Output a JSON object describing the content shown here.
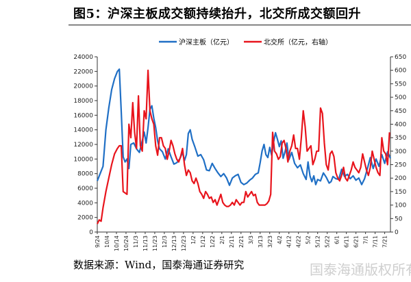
{
  "title": "图5：沪深主板成交额持续抬升，北交所成交额回升",
  "source": "数据来源：Wind，国泰海通证券研究",
  "watermark": "国泰海通版权所有",
  "chart_data": {
    "type": "line",
    "title": "沪深主板成交额持续抬升，北交所成交额回升",
    "x_tick_labels": [
      "9/24",
      "10/4",
      "10/14",
      "10/24",
      "11/3",
      "11/13",
      "11/23",
      "12/3",
      "12/13",
      "12/23",
      "1/2",
      "1/12",
      "1/22",
      "2/1",
      "2/11",
      "2/21",
      "3/3",
      "3/13",
      "3/23",
      "4/2",
      "4/12",
      "4/22",
      "5/2",
      "5/12",
      "5/22",
      "6/1",
      "6/11",
      "6/21",
      "7/1",
      "7/11",
      "7/21"
    ],
    "y_left": {
      "min": 0,
      "max": 24000,
      "step": 2000,
      "label": "沪深主板（亿元）"
    },
    "y_right": {
      "min": 0,
      "max": 650,
      "step": 50,
      "label": "北交所（亿元，右轴）"
    },
    "legend_position": "top",
    "colors": {
      "mainboard": "#1f6fc5",
      "bse": "#e8141c"
    },
    "series": [
      {
        "name": "沪深主板（亿元）",
        "axis": "left",
        "points": [
          [
            0,
            7000
          ],
          [
            0.3,
            8000
          ],
          [
            0.6,
            9000
          ],
          [
            0.9,
            14000
          ],
          [
            1.2,
            17000
          ],
          [
            1.5,
            19500
          ],
          [
            1.8,
            21000
          ],
          [
            2.1,
            22000
          ],
          [
            2.3,
            22300
          ],
          [
            2.5,
            16500
          ],
          [
            2.7,
            10300
          ],
          [
            2.9,
            9600
          ],
          [
            3.1,
            10000
          ],
          [
            3.3,
            8700
          ],
          [
            3.5,
            12000
          ],
          [
            3.8,
            12200
          ],
          [
            4.1,
            11400
          ],
          [
            4.4,
            10900
          ],
          [
            4.7,
            12500
          ],
          [
            4.9,
            13700
          ],
          [
            5.1,
            12200
          ],
          [
            5.3,
            14300
          ],
          [
            5.5,
            16800
          ],
          [
            5.7,
            17300
          ],
          [
            5.9,
            15600
          ],
          [
            6.1,
            14300
          ],
          [
            6.3,
            12500
          ],
          [
            6.5,
            11400
          ],
          [
            6.8,
            11000
          ],
          [
            7.1,
            10000
          ],
          [
            7.4,
            11400
          ],
          [
            7.7,
            10300
          ],
          [
            8.0,
            9300
          ],
          [
            8.3,
            9500
          ],
          [
            8.6,
            10000
          ],
          [
            8.9,
            10900
          ],
          [
            9.1,
            9800
          ],
          [
            9.3,
            10600
          ],
          [
            9.5,
            13500
          ],
          [
            9.7,
            14000
          ],
          [
            9.9,
            12700
          ],
          [
            10.2,
            11600
          ],
          [
            10.5,
            10400
          ],
          [
            10.8,
            10600
          ],
          [
            11.1,
            9900
          ],
          [
            11.4,
            8500
          ],
          [
            11.7,
            8400
          ],
          [
            12.0,
            9400
          ],
          [
            12.3,
            8700
          ],
          [
            12.6,
            8100
          ],
          [
            12.9,
            7600
          ],
          [
            13.2,
            8000
          ],
          [
            13.5,
            7400
          ],
          [
            13.8,
            6400
          ],
          [
            14.1,
            7400
          ],
          [
            14.4,
            7700
          ],
          [
            14.7,
            7900
          ],
          [
            15.0,
            6800
          ],
          [
            15.3,
            6500
          ],
          [
            15.6,
            6700
          ],
          [
            15.9,
            7100
          ],
          [
            16.2,
            7400
          ],
          [
            16.5,
            7900
          ],
          [
            16.8,
            8100
          ],
          [
            17.0,
            9500
          ],
          [
            17.2,
            11100
          ],
          [
            17.4,
            12000
          ],
          [
            17.6,
            10600
          ],
          [
            17.8,
            10200
          ],
          [
            18.0,
            11600
          ],
          [
            18.2,
            10500
          ],
          [
            18.4,
            12300
          ],
          [
            18.6,
            13600
          ],
          [
            18.8,
            12700
          ],
          [
            19.0,
            11700
          ],
          [
            19.2,
            12500
          ],
          [
            19.4,
            10100
          ],
          [
            19.6,
            11000
          ],
          [
            19.8,
            12200
          ],
          [
            20.0,
            9900
          ],
          [
            20.3,
            10900
          ],
          [
            20.6,
            9400
          ],
          [
            20.9,
            8800
          ],
          [
            21.2,
            9200
          ],
          [
            21.5,
            8000
          ],
          [
            21.8,
            7200
          ],
          [
            22.0,
            9600
          ],
          [
            22.2,
            7700
          ],
          [
            22.4,
            6900
          ],
          [
            22.6,
            7700
          ],
          [
            22.8,
            6500
          ],
          [
            23.0,
            7200
          ],
          [
            23.3,
            7000
          ],
          [
            23.6,
            8100
          ],
          [
            23.9,
            7500
          ],
          [
            24.2,
            6700
          ],
          [
            24.4,
            6900
          ],
          [
            24.6,
            7600
          ],
          [
            24.9,
            7300
          ],
          [
            25.2,
            7200
          ],
          [
            25.5,
            8600
          ],
          [
            25.8,
            7600
          ],
          [
            26.1,
            7900
          ],
          [
            26.4,
            7300
          ],
          [
            26.7,
            7700
          ],
          [
            27.0,
            7100
          ],
          [
            27.3,
            7400
          ],
          [
            27.6,
            6500
          ],
          [
            27.9,
            7300
          ],
          [
            28.2,
            8700
          ],
          [
            28.5,
            10200
          ],
          [
            28.8,
            8700
          ],
          [
            29.1,
            10000
          ],
          [
            29.4,
            9000
          ],
          [
            29.7,
            10600
          ],
          [
            30.0,
            9400
          ],
          [
            30.3,
            11000
          ],
          [
            30.6,
            10100
          ]
        ]
      },
      {
        "name": "北交所（亿元，右轴）",
        "axis": "right",
        "points": [
          [
            0,
            30
          ],
          [
            0.2,
            45
          ],
          [
            0.4,
            40
          ],
          [
            0.6,
            90
          ],
          [
            0.9,
            150
          ],
          [
            1.2,
            200
          ],
          [
            1.5,
            250
          ],
          [
            1.8,
            290
          ],
          [
            2.1,
            310
          ],
          [
            2.3,
            320
          ],
          [
            2.5,
            320
          ],
          [
            2.7,
            150
          ],
          [
            2.9,
            145
          ],
          [
            3.1,
            140
          ],
          [
            3.3,
            400
          ],
          [
            3.5,
            350
          ],
          [
            3.7,
            480
          ],
          [
            3.9,
            370
          ],
          [
            4.1,
            310
          ],
          [
            4.3,
            505
          ],
          [
            4.5,
            320
          ],
          [
            4.7,
            300
          ],
          [
            4.9,
            450
          ],
          [
            5.1,
            420
          ],
          [
            5.3,
            600
          ],
          [
            5.5,
            450
          ],
          [
            5.7,
            420
          ],
          [
            5.9,
            400
          ],
          [
            6.1,
            320
          ],
          [
            6.3,
            285
          ],
          [
            6.5,
            350
          ],
          [
            6.7,
            350
          ],
          [
            6.9,
            320
          ],
          [
            7.1,
            310
          ],
          [
            7.3,
            270
          ],
          [
            7.5,
            300
          ],
          [
            7.7,
            340
          ],
          [
            7.9,
            320
          ],
          [
            8.1,
            290
          ],
          [
            8.3,
            270
          ],
          [
            8.5,
            260
          ],
          [
            8.7,
            280
          ],
          [
            8.9,
            310
          ],
          [
            9.1,
            250
          ],
          [
            9.3,
            210
          ],
          [
            9.5,
            230
          ],
          [
            9.7,
            220
          ],
          [
            9.9,
            190
          ],
          [
            10.1,
            180
          ],
          [
            10.3,
            200
          ],
          [
            10.5,
            180
          ],
          [
            10.7,
            150
          ],
          [
            10.9,
            140
          ],
          [
            11.1,
            125
          ],
          [
            11.3,
            150
          ],
          [
            11.5,
            140
          ],
          [
            11.7,
            125
          ],
          [
            11.9,
            130
          ],
          [
            12.1,
            110
          ],
          [
            12.3,
            120
          ],
          [
            12.5,
            100
          ],
          [
            12.7,
            120
          ],
          [
            12.9,
            140
          ],
          [
            13.1,
            110
          ],
          [
            13.3,
            100
          ],
          [
            13.5,
            95
          ],
          [
            13.7,
            95
          ],
          [
            13.9,
            100
          ],
          [
            14.1,
            110
          ],
          [
            14.3,
            100
          ],
          [
            14.5,
            120
          ],
          [
            14.7,
            110
          ],
          [
            14.9,
            100
          ],
          [
            15.1,
            110
          ],
          [
            15.3,
            110
          ],
          [
            15.5,
            150
          ],
          [
            15.7,
            130
          ],
          [
            15.9,
            140
          ],
          [
            16.1,
            150
          ],
          [
            16.3,
            135
          ],
          [
            16.5,
            140
          ],
          [
            16.7,
            110
          ],
          [
            16.9,
            100
          ],
          [
            17.1,
            100
          ],
          [
            17.3,
            100
          ],
          [
            17.5,
            100
          ],
          [
            17.7,
            105
          ],
          [
            17.9,
            115
          ],
          [
            18.1,
            140
          ],
          [
            18.3,
            370
          ],
          [
            18.5,
            300
          ],
          [
            18.7,
            290
          ],
          [
            18.9,
            270
          ],
          [
            19.1,
            280
          ],
          [
            19.3,
            330
          ],
          [
            19.5,
            340
          ],
          [
            19.7,
            310
          ],
          [
            19.9,
            260
          ],
          [
            20.1,
            300
          ],
          [
            20.3,
            320
          ],
          [
            20.5,
            360
          ],
          [
            20.7,
            310
          ],
          [
            20.9,
            310
          ],
          [
            21.1,
            270
          ],
          [
            21.3,
            350
          ],
          [
            21.5,
            450
          ],
          [
            21.7,
            390
          ],
          [
            21.9,
            300
          ],
          [
            22.1,
            310
          ],
          [
            22.3,
            320
          ],
          [
            22.5,
            250
          ],
          [
            22.7,
            270
          ],
          [
            22.9,
            300
          ],
          [
            23.1,
            300
          ],
          [
            23.3,
            460
          ],
          [
            23.5,
            440
          ],
          [
            23.7,
            330
          ],
          [
            23.9,
            250
          ],
          [
            24.1,
            230
          ],
          [
            24.3,
            290
          ],
          [
            24.5,
            300
          ],
          [
            24.7,
            280
          ],
          [
            24.9,
            220
          ],
          [
            25.1,
            200
          ],
          [
            25.3,
            190
          ],
          [
            25.5,
            210
          ],
          [
            25.7,
            240
          ],
          [
            25.9,
            200
          ],
          [
            26.1,
            190
          ],
          [
            26.3,
            210
          ],
          [
            26.5,
            230
          ],
          [
            26.7,
            260
          ],
          [
            26.9,
            240
          ],
          [
            27.1,
            230
          ],
          [
            27.3,
            220
          ],
          [
            27.5,
            240
          ],
          [
            27.7,
            290
          ],
          [
            27.9,
            260
          ],
          [
            28.1,
            230
          ],
          [
            28.3,
            210
          ],
          [
            28.5,
            240
          ],
          [
            28.7,
            300
          ],
          [
            28.9,
            270
          ],
          [
            29.1,
            240
          ],
          [
            29.3,
            220
          ],
          [
            29.5,
            210
          ],
          [
            29.7,
            350
          ],
          [
            29.9,
            300
          ],
          [
            30.1,
            290
          ],
          [
            30.3,
            250
          ],
          [
            30.5,
            370
          ]
        ]
      }
    ]
  }
}
